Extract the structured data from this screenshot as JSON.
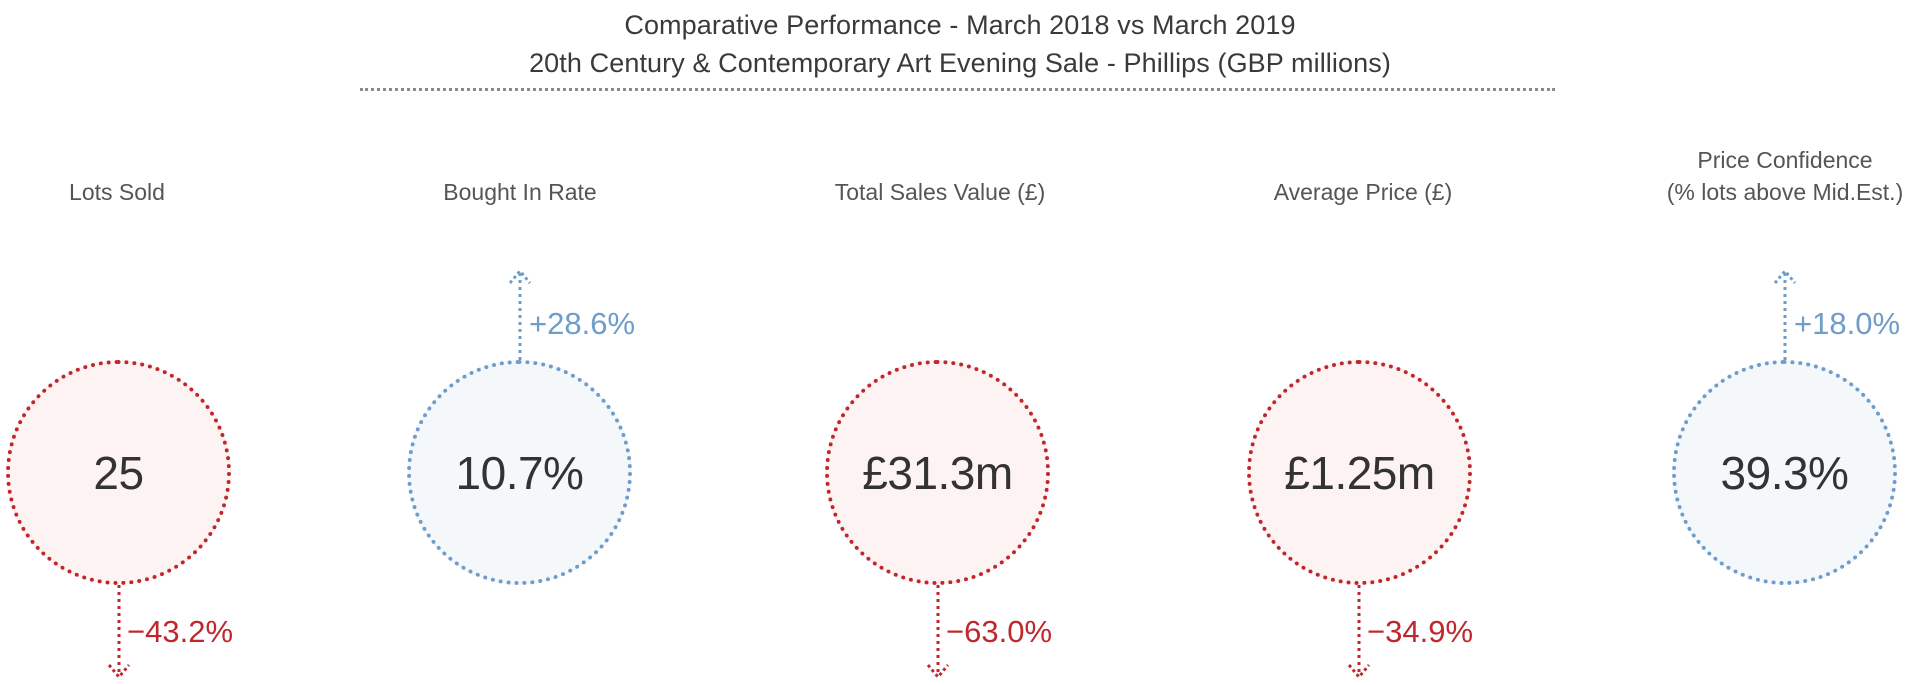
{
  "header": {
    "title": "Comparative Performance - March 2018 vs March 2019",
    "subtitle": "20th Century & Contemporary Art Evening Sale - Phillips (GBP millions)"
  },
  "colors": {
    "decrease": "#c0272d",
    "increase": "#6e9ccb",
    "text": "#333333"
  },
  "metrics": [
    {
      "label_line1": "Lots Sold",
      "label_line2": "",
      "value": "25",
      "change": "−43.2%",
      "direction": "down"
    },
    {
      "label_line1": "Bought In Rate",
      "label_line2": "",
      "value": "10.7%",
      "change": "+28.6%",
      "direction": "up"
    },
    {
      "label_line1": "Total Sales Value (£)",
      "label_line2": "",
      "value": "£31.3m",
      "change": "−63.0%",
      "direction": "down"
    },
    {
      "label_line1": "Average Price (£)",
      "label_line2": "",
      "value": "£1.25m",
      "change": "−34.9%",
      "direction": "down"
    },
    {
      "label_line1": "Price Confidence",
      "label_line2": "(% lots above Mid.Est.)",
      "value": "39.3%",
      "change": "+18.0%",
      "direction": "up"
    }
  ]
}
